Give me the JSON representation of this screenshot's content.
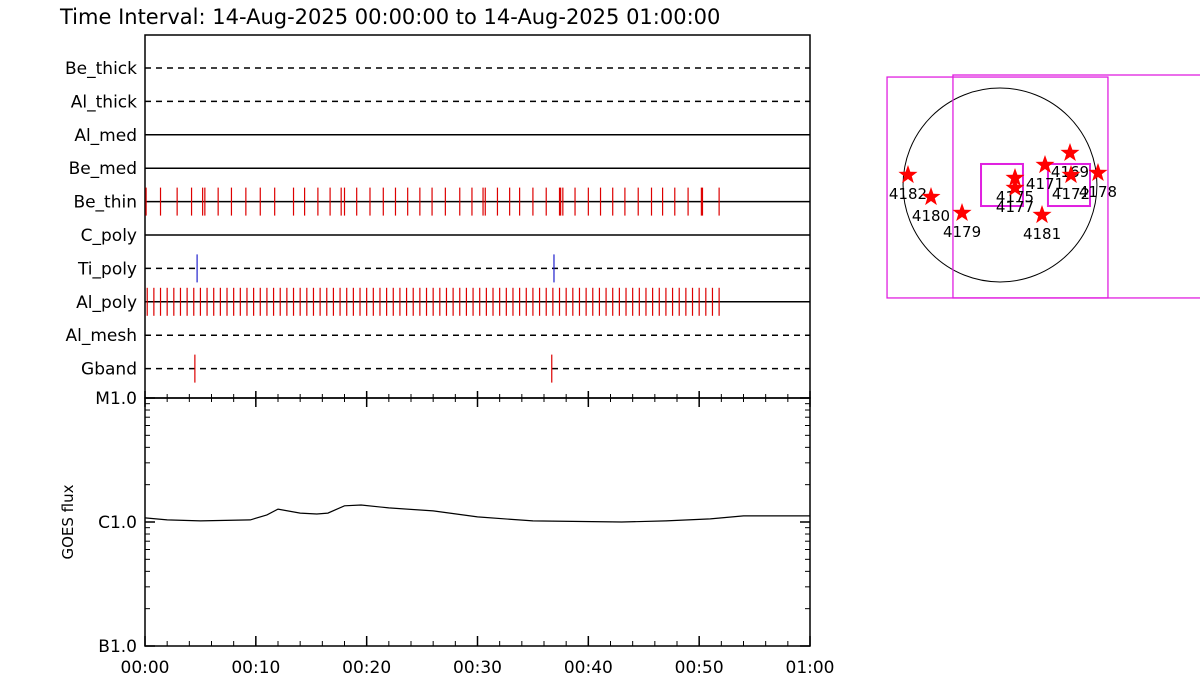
{
  "title": "Time Interval: 14-Aug-2025 00:00:00 to 14-Aug-2025 01:00:00",
  "chart_data": [
    {
      "type": "timeline",
      "xlim": [
        0,
        60
      ],
      "rows": [
        {
          "name": "Be_thick",
          "style": "dashed",
          "events": []
        },
        {
          "name": "Al_thick",
          "style": "dashed",
          "events": []
        },
        {
          "name": "Al_med",
          "style": "solid",
          "events": []
        },
        {
          "name": "Be_med",
          "style": "solid",
          "events": []
        },
        {
          "name": "Be_thin",
          "style": "solid",
          "color": "#dd0000",
          "events": [
            0.1,
            1.4,
            2.9,
            4.2,
            5.2,
            5.4,
            6.6,
            7.8,
            9.1,
            10.4,
            11.7,
            13.4,
            14.4,
            15.6,
            16.7,
            17.7,
            18.0,
            19.1,
            20.3,
            21.5,
            22.6,
            23.7,
            24.8,
            25.9,
            27.1,
            28.4,
            29.5,
            30.5,
            30.7,
            31.8,
            32.9,
            33.8,
            35.0,
            36.2,
            37.4,
            37.5,
            37.7,
            38.8,
            40.0,
            41.1,
            42.2,
            43.3,
            44.5,
            45.7,
            46.7,
            47.8,
            49.0,
            50.2,
            50.3,
            51.8
          ]
        },
        {
          "name": "C_poly",
          "style": "solid",
          "events": []
        },
        {
          "name": "Ti_poly",
          "style": "dashed",
          "color": "#2020cc",
          "events": [
            4.7,
            36.9
          ]
        },
        {
          "name": "Al_poly",
          "style": "solid",
          "color": "#dd0000",
          "events": [
            0.2,
            0.8,
            1.4,
            2.0,
            2.6,
            3.2,
            3.8,
            4.4,
            5.0,
            5.6,
            6.2,
            6.8,
            7.4,
            8.0,
            8.6,
            9.2,
            9.8,
            10.4,
            11.0,
            11.6,
            12.2,
            12.8,
            13.4,
            14.0,
            14.6,
            15.2,
            15.8,
            16.4,
            17.0,
            17.6,
            18.2,
            18.8,
            19.4,
            20.0,
            20.6,
            21.2,
            21.8,
            22.4,
            23.0,
            23.6,
            24.2,
            24.8,
            25.4,
            26.0,
            26.6,
            27.2,
            27.8,
            28.4,
            29.0,
            29.6,
            30.2,
            30.8,
            31.4,
            32.0,
            32.6,
            33.2,
            33.8,
            34.4,
            35.0,
            35.6,
            36.2,
            36.8,
            37.4,
            38.0,
            38.6,
            39.2,
            39.8,
            40.4,
            41.0,
            41.6,
            42.2,
            42.8,
            43.4,
            44.0,
            44.6,
            45.2,
            45.8,
            46.4,
            47.0,
            47.6,
            48.2,
            48.8,
            49.4,
            50.0,
            50.6,
            51.2,
            51.8
          ]
        },
        {
          "name": "Al_mesh",
          "style": "dashed",
          "events": []
        },
        {
          "name": "Gband",
          "style": "dashed",
          "color": "#dd0000",
          "events": [
            4.5,
            36.7
          ]
        }
      ]
    },
    {
      "type": "line",
      "ylabel": "GOES flux",
      "log": true,
      "color": "#000000",
      "xlim": [
        0,
        60
      ],
      "xticks": [
        {
          "value": 0,
          "label": "00:00"
        },
        {
          "value": 10,
          "label": "00:10"
        },
        {
          "value": 20,
          "label": "00:20"
        },
        {
          "value": 30,
          "label": "00:30"
        },
        {
          "value": 40,
          "label": "00:40"
        },
        {
          "value": 50,
          "label": "00:50"
        },
        {
          "value": 60,
          "label": "01:00"
        }
      ],
      "ylim": [
        1e-07,
        1e-05
      ],
      "yticks": [
        {
          "value": 1e-05,
          "label": "M1.0"
        },
        {
          "value": 1e-06,
          "label": "C1.0"
        },
        {
          "value": 1e-07,
          "label": "B1.0"
        }
      ],
      "x": [
        0,
        2,
        5,
        9.5,
        11,
        12,
        14,
        15.5,
        16.5,
        18,
        19.5,
        22,
        26,
        30,
        35,
        43,
        47,
        51,
        54,
        57,
        60
      ],
      "values": [
        1.08e-06,
        1.04e-06,
        1.02e-06,
        1.04e-06,
        1.14e-06,
        1.27e-06,
        1.18e-06,
        1.16e-06,
        1.18e-06,
        1.35e-06,
        1.37e-06,
        1.3e-06,
        1.23e-06,
        1.1e-06,
        1.02e-06,
        1e-06,
        1.02e-06,
        1.06e-06,
        1.12e-06,
        1.12e-06,
        1.12e-06
      ]
    },
    {
      "type": "map",
      "solar_radius": 950,
      "star_color": "#ff0000",
      "field_color": "#e020e0",
      "fields": [
        {
          "x0": -1107,
          "x1": 1058,
          "y0": -1107,
          "y1": 1058
        },
        {
          "x0": -461,
          "x1": 2500,
          "y0": -1107,
          "y1": 1078
        },
        {
          "x0": -186,
          "x1": 225,
          "y0": -206,
          "y1": 206
        },
        {
          "x0": 470,
          "x1": 882,
          "y0": -206,
          "y1": 206
        }
      ],
      "regions": [
        {
          "name": "4182",
          "x": -902,
          "y": 98
        },
        {
          "name": "4180",
          "x": -676,
          "y": -118
        },
        {
          "name": "4179",
          "x": -372,
          "y": -274
        },
        {
          "name": "4175",
          "x": 147,
          "y": 69
        },
        {
          "name": "4177",
          "x": 147,
          "y": -29
        },
        {
          "name": "4171",
          "x": 441,
          "y": 196
        },
        {
          "name": "4169",
          "x": 686,
          "y": 314
        },
        {
          "name": "4172",
          "x": 696,
          "y": 98
        },
        {
          "name": "4178",
          "x": 960,
          "y": 118
        },
        {
          "name": "4181",
          "x": 412,
          "y": -294
        }
      ]
    }
  ]
}
